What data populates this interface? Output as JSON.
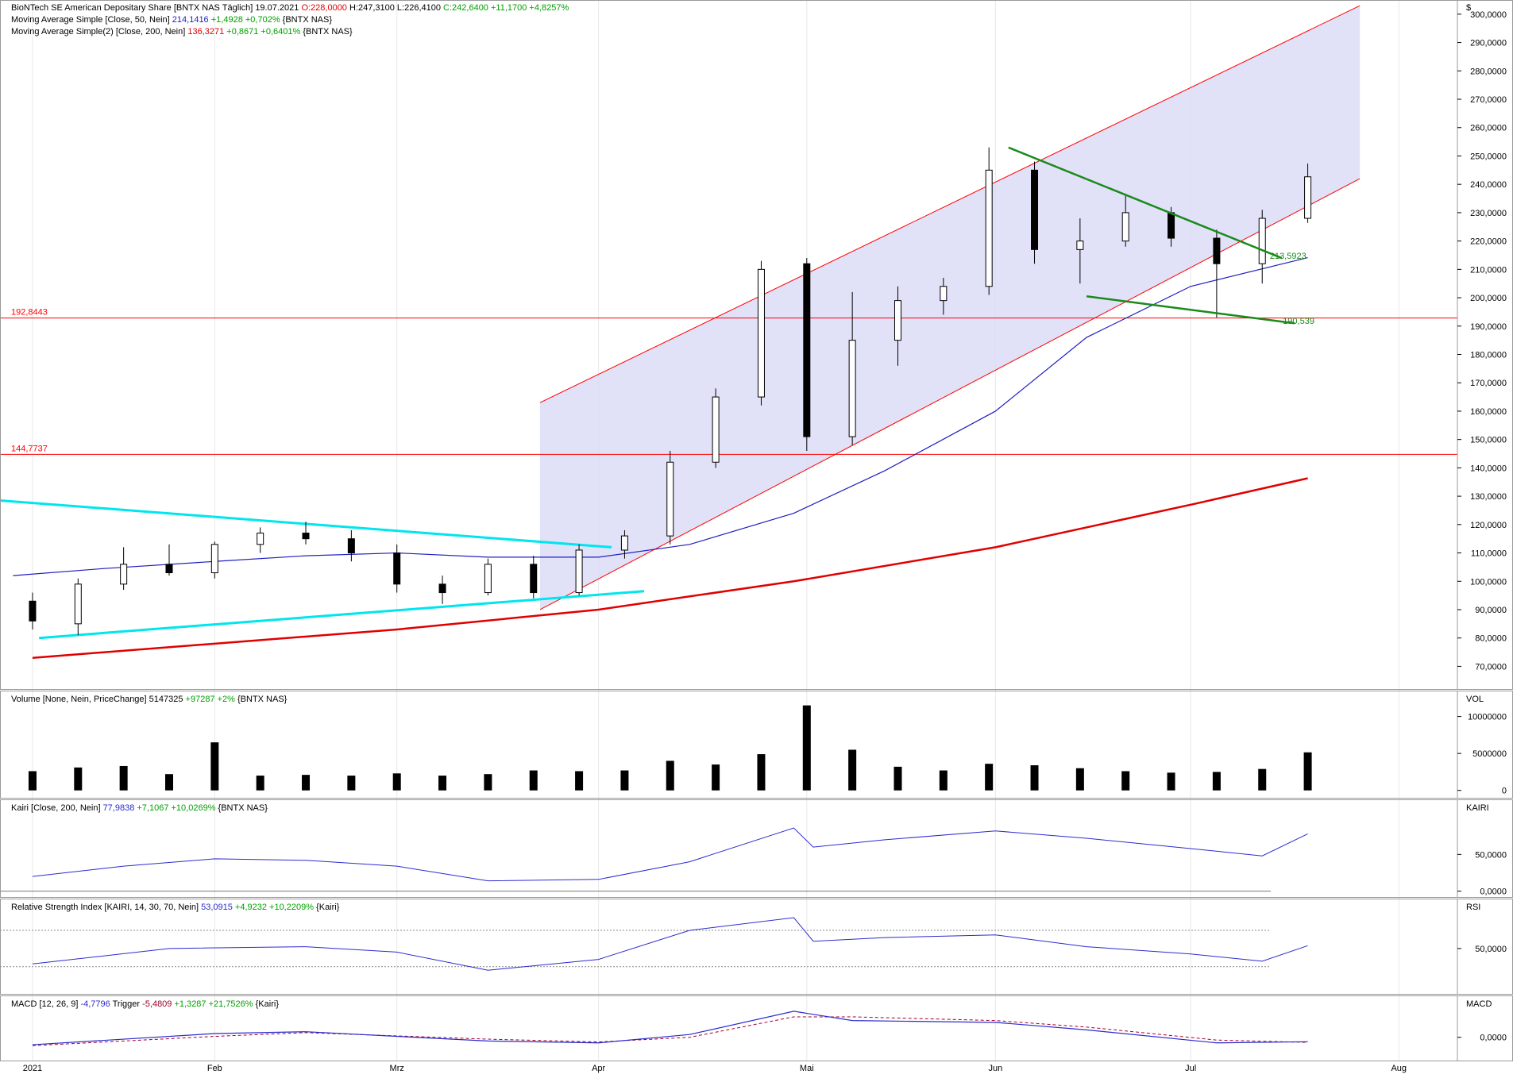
{
  "currency_symbol": "$",
  "colors": {
    "up": "#ffffff",
    "down": "#000000",
    "candle_edge": "#000000",
    "ma50": "#1f1fbf",
    "ma200": "#e00000",
    "channel_fill": "#dcdcf7",
    "channel_line": "#ff0000",
    "hline": "#ff0000",
    "cyan": "#00e5ee",
    "green": "#1a8a1a",
    "volume": "#000000",
    "indicator": "#2b2bd0",
    "macd_trigger": "#a0002a",
    "grid": "#e8e8e8",
    "positive": "#00a000",
    "negative": "#e00000"
  },
  "headers": {
    "price": [
      {
        "parts": [
          {
            "t": "BioNTech SE American Depositary Share [BNTX NAS  Täglich]  19.07.2021 ",
            "c": "#000"
          },
          {
            "t": "O:228,0000",
            "c": "#e00000"
          },
          {
            "t": " H:247,3100 L:226,4100 ",
            "c": "#000"
          },
          {
            "t": "C:242,6400 +11,1700 +4,8257%",
            "c": "#00a000"
          }
        ]
      },
      {
        "parts": [
          {
            "t": "Moving Average Simple [Close, 50, Nein] ",
            "c": "#000"
          },
          {
            "t": "214,1416",
            "c": "#1f1fbf"
          },
          {
            "t": " +1,4928 +0,702%",
            "c": "#00a000"
          },
          {
            "t": " {BNTX NAS}",
            "c": "#000"
          }
        ]
      },
      {
        "parts": [
          {
            "t": "Moving Average Simple(2) [Close, 200, Nein] ",
            "c": "#000"
          },
          {
            "t": "136,3271",
            "c": "#e00000"
          },
          {
            "t": " +0,8671 +0,6401%",
            "c": "#00a000"
          },
          {
            "t": " {BNTX NAS}",
            "c": "#000"
          }
        ]
      }
    ],
    "volume": [
      {
        "t": "Volume [None, Nein, PriceChange] ",
        "c": "#000"
      },
      {
        "t": "5147325",
        "c": "#000"
      },
      {
        "t": " +97287 +2%",
        "c": "#00a000"
      },
      {
        "t": " {BNTX NAS}",
        "c": "#000"
      }
    ],
    "kairi": [
      {
        "t": "Kairi [Close, 200, Nein] ",
        "c": "#000"
      },
      {
        "t": "77,9838",
        "c": "#2b2bd0"
      },
      {
        "t": " +7,1067 +10,0269%",
        "c": "#00a000"
      },
      {
        "t": " {BNTX NAS}",
        "c": "#000"
      }
    ],
    "rsi": [
      {
        "t": "Relative Strength Index [KAIRI, 14, 30, 70, Nein] ",
        "c": "#000"
      },
      {
        "t": "53,0915",
        "c": "#2b2bd0"
      },
      {
        "t": " +4,9232 +10,2209%",
        "c": "#00a000"
      },
      {
        "t": " {Kairi}",
        "c": "#000"
      }
    ],
    "macd": [
      {
        "t": "MACD [12, 26, 9] ",
        "c": "#000"
      },
      {
        "t": "-4,7796",
        "c": "#2b2bd0"
      },
      {
        "t": " Trigger ",
        "c": "#000"
      },
      {
        "t": "-5,4809",
        "c": "#a0002a"
      },
      {
        "t": " +1,3287 +21,7526%",
        "c": "#00a000"
      },
      {
        "t": " {Kairi}",
        "c": "#000"
      }
    ]
  },
  "axis_titles": {
    "volume": "VOL",
    "kairi": "KAIRI",
    "rsi": "RSI",
    "macd": "MACD"
  },
  "x_labels": [
    {
      "label": "2021",
      "date": "2021-01-04"
    },
    {
      "label": "Feb",
      "date": "2021-02-01"
    },
    {
      "label": "Mrz",
      "date": "2021-03-01"
    },
    {
      "label": "Apr",
      "date": "2021-04-01"
    },
    {
      "label": "Mai",
      "date": "2021-05-03"
    },
    {
      "label": "Jun",
      "date": "2021-06-01"
    },
    {
      "label": "Jul",
      "date": "2021-07-01"
    },
    {
      "label": "Aug",
      "date": "2021-08-02"
    }
  ],
  "x_range": [
    "2020-12-30",
    "2021-08-11"
  ],
  "price_axis": {
    "range": [
      62000,
      305000
    ],
    "ticks": [
      {
        "v": 70000,
        "label": "70,0000"
      },
      {
        "v": 80000,
        "label": "80,0000"
      },
      {
        "v": 90000,
        "label": "90,0000"
      },
      {
        "v": 100000,
        "label": "100,0000"
      },
      {
        "v": 110000,
        "label": "110,0000"
      },
      {
        "v": 120000,
        "label": "120,0000"
      },
      {
        "v": 130000,
        "label": "130,0000"
      },
      {
        "v": 140000,
        "label": "140,0000"
      },
      {
        "v": 150000,
        "label": "150,0000"
      },
      {
        "v": 160000,
        "label": "160,0000"
      },
      {
        "v": 170000,
        "label": "170,0000"
      },
      {
        "v": 180000,
        "label": "180,0000"
      },
      {
        "v": 190000,
        "label": "190,0000"
      },
      {
        "v": 200000,
        "label": "200,0000"
      },
      {
        "v": 210000,
        "label": "210,0000"
      },
      {
        "v": 220000,
        "label": "220,0000"
      },
      {
        "v": 230000,
        "label": "230,0000"
      },
      {
        "v": 240000,
        "label": "240,0000"
      },
      {
        "v": 250000,
        "label": "250,0000"
      },
      {
        "v": 260000,
        "label": "260,0000"
      },
      {
        "v": 270000,
        "label": "270,0000"
      },
      {
        "v": 280000,
        "label": "280,0000"
      },
      {
        "v": 290000,
        "label": "290,0000"
      },
      {
        "v": 300000,
        "label": "300,0000"
      }
    ]
  },
  "volume_axis": {
    "range": [
      -1000000,
      13500000
    ],
    "ticks": [
      {
        "v": 0,
        "label": "0"
      },
      {
        "v": 5000000,
        "label": "5000000"
      },
      {
        "v": 10000000,
        "label": "10000000"
      }
    ]
  },
  "kairi_axis": {
    "range": [
      -8000,
      125000
    ],
    "ticks": [
      {
        "v": 0,
        "label": "0,0000"
      },
      {
        "v": 50000,
        "label": "50,0000"
      }
    ]
  },
  "rsi_axis": {
    "range": [
      0,
      105000
    ],
    "ticks": [
      {
        "v": 50000,
        "label": "50,0000"
      }
    ],
    "levels": [
      30000,
      70000
    ]
  },
  "macd_axis": {
    "range": [
      -25000,
      45000
    ],
    "ticks": [
      {
        "v": 0,
        "label": "0,0000"
      }
    ]
  },
  "chart_data": {
    "type": "candlestick",
    "title": "BioNTech SE American Depositary Share [BNTX NAS  Täglich]",
    "candles": [
      {
        "d": "2021-01-04",
        "o": 93000,
        "h": 96000,
        "l": 83000,
        "c": 86000
      },
      {
        "d": "2021-01-11",
        "o": 85000,
        "h": 101000,
        "l": 81000,
        "c": 99000
      },
      {
        "d": "2021-01-18",
        "o": 99000,
        "h": 112000,
        "l": 97000,
        "c": 106000
      },
      {
        "d": "2021-01-25",
        "o": 106000,
        "h": 113000,
        "l": 102000,
        "c": 103000
      },
      {
        "d": "2021-02-01",
        "o": 103000,
        "h": 114000,
        "l": 101000,
        "c": 113000
      },
      {
        "d": "2021-02-08",
        "o": 113000,
        "h": 119000,
        "l": 110000,
        "c": 117000
      },
      {
        "d": "2021-02-15",
        "o": 117000,
        "h": 121000,
        "l": 113000,
        "c": 115000
      },
      {
        "d": "2021-02-22",
        "o": 115000,
        "h": 118000,
        "l": 107000,
        "c": 110000
      },
      {
        "d": "2021-03-01",
        "o": 110000,
        "h": 113000,
        "l": 96000,
        "c": 99000
      },
      {
        "d": "2021-03-08",
        "o": 99000,
        "h": 102000,
        "l": 92000,
        "c": 96000
      },
      {
        "d": "2021-03-15",
        "o": 96000,
        "h": 108000,
        "l": 95000,
        "c": 106000
      },
      {
        "d": "2021-03-22",
        "o": 106000,
        "h": 109000,
        "l": 94000,
        "c": 96000
      },
      {
        "d": "2021-03-29",
        "o": 96000,
        "h": 113000,
        "l": 95000,
        "c": 111000
      },
      {
        "d": "2021-04-05",
        "o": 111000,
        "h": 118000,
        "l": 108000,
        "c": 116000
      },
      {
        "d": "2021-04-12",
        "o": 116000,
        "h": 146000,
        "l": 113000,
        "c": 142000
      },
      {
        "d": "2021-04-19",
        "o": 142000,
        "h": 168000,
        "l": 140000,
        "c": 165000
      },
      {
        "d": "2021-04-26",
        "o": 165000,
        "h": 213000,
        "l": 162000,
        "c": 210000
      },
      {
        "d": "2021-05-03",
        "o": 212000,
        "h": 214000,
        "l": 146000,
        "c": 151000
      },
      {
        "d": "2021-05-10",
        "o": 151000,
        "h": 202000,
        "l": 148000,
        "c": 185000
      },
      {
        "d": "2021-05-17",
        "o": 185000,
        "h": 204000,
        "l": 176000,
        "c": 199000
      },
      {
        "d": "2021-05-24",
        "o": 199000,
        "h": 207000,
        "l": 194000,
        "c": 204000
      },
      {
        "d": "2021-05-31",
        "o": 204000,
        "h": 253000,
        "l": 201000,
        "c": 245000
      },
      {
        "d": "2021-06-07",
        "o": 245000,
        "h": 248000,
        "l": 212000,
        "c": 217000
      },
      {
        "d": "2021-06-14",
        "o": 217000,
        "h": 228000,
        "l": 205000,
        "c": 220000
      },
      {
        "d": "2021-06-21",
        "o": 220000,
        "h": 236000,
        "l": 218000,
        "c": 230000
      },
      {
        "d": "2021-06-28",
        "o": 230000,
        "h": 232000,
        "l": 218000,
        "c": 221000
      },
      {
        "d": "2021-07-05",
        "o": 221000,
        "h": 224000,
        "l": 193000,
        "c": 212000
      },
      {
        "d": "2021-07-12",
        "o": 212000,
        "h": 231000,
        "l": 205000,
        "c": 228000
      },
      {
        "d": "2021-07-19",
        "o": 228000,
        "h": 247310,
        "l": 226410,
        "c": 242640
      }
    ],
    "ma50": [
      {
        "d": "2021-01-01",
        "v": 102000
      },
      {
        "d": "2021-01-15",
        "v": 104500
      },
      {
        "d": "2021-02-01",
        "v": 107000
      },
      {
        "d": "2021-02-15",
        "v": 109000
      },
      {
        "d": "2021-03-01",
        "v": 110000
      },
      {
        "d": "2021-03-15",
        "v": 108500
      },
      {
        "d": "2021-04-01",
        "v": 108500
      },
      {
        "d": "2021-04-15",
        "v": 113000
      },
      {
        "d": "2021-05-01",
        "v": 124000
      },
      {
        "d": "2021-05-15",
        "v": 139000
      },
      {
        "d": "2021-06-01",
        "v": 160000
      },
      {
        "d": "2021-06-15",
        "v": 186000
      },
      {
        "d": "2021-07-01",
        "v": 204000
      },
      {
        "d": "2021-07-19",
        "v": 214141
      }
    ],
    "ma200": [
      {
        "d": "2021-01-04",
        "v": 73000
      },
      {
        "d": "2021-02-01",
        "v": 78000
      },
      {
        "d": "2021-03-01",
        "v": 83000
      },
      {
        "d": "2021-04-01",
        "v": 90000
      },
      {
        "d": "2021-05-01",
        "v": 100000
      },
      {
        "d": "2021-06-01",
        "v": 112000
      },
      {
        "d": "2021-07-01",
        "v": 127000
      },
      {
        "d": "2021-07-19",
        "v": 136327
      }
    ],
    "channel": {
      "upper": [
        {
          "d": "2021-03-23",
          "v": 163000
        },
        {
          "d": "2021-07-27",
          "v": 303000
        }
      ],
      "lower": [
        {
          "d": "2021-03-23",
          "v": 90000
        },
        {
          "d": "2021-07-27",
          "v": 242000
        }
      ]
    },
    "hlines": [
      {
        "v": 192844,
        "label": "192,8443"
      },
      {
        "v": 144774,
        "label": "144,7737"
      }
    ],
    "cyan_lines": [
      [
        {
          "d": "2020-12-30",
          "v": 128500
        },
        {
          "d": "2021-04-03",
          "v": 112000
        }
      ],
      [
        {
          "d": "2021-01-05",
          "v": 80000
        },
        {
          "d": "2021-04-08",
          "v": 96500
        }
      ]
    ],
    "green_lines": [
      {
        "points": [
          {
            "d": "2021-06-03",
            "v": 253000
          },
          {
            "d": "2021-07-15",
            "v": 214000
          }
        ],
        "label": "213,5923"
      },
      {
        "points": [
          {
            "d": "2021-06-15",
            "v": 200500
          },
          {
            "d": "2021-07-17",
            "v": 191000
          }
        ],
        "label": "190,539"
      }
    ],
    "volume": [
      {
        "d": "2021-01-04",
        "v": 2600000
      },
      {
        "d": "2021-01-11",
        "v": 3100000
      },
      {
        "d": "2021-01-18",
        "v": 3300000
      },
      {
        "d": "2021-01-25",
        "v": 2200000
      },
      {
        "d": "2021-02-01",
        "v": 6500000
      },
      {
        "d": "2021-02-08",
        "v": 2000000
      },
      {
        "d": "2021-02-15",
        "v": 2100000
      },
      {
        "d": "2021-02-22",
        "v": 2000000
      },
      {
        "d": "2021-03-01",
        "v": 2300000
      },
      {
        "d": "2021-03-08",
        "v": 2000000
      },
      {
        "d": "2021-03-15",
        "v": 2200000
      },
      {
        "d": "2021-03-22",
        "v": 2700000
      },
      {
        "d": "2021-03-29",
        "v": 2600000
      },
      {
        "d": "2021-04-05",
        "v": 2700000
      },
      {
        "d": "2021-04-12",
        "v": 4000000
      },
      {
        "d": "2021-04-19",
        "v": 3500000
      },
      {
        "d": "2021-04-26",
        "v": 4900000
      },
      {
        "d": "2021-05-03",
        "v": 11500000
      },
      {
        "d": "2021-05-10",
        "v": 5500000
      },
      {
        "d": "2021-05-17",
        "v": 3200000
      },
      {
        "d": "2021-05-24",
        "v": 2700000
      },
      {
        "d": "2021-05-31",
        "v": 3600000
      },
      {
        "d": "2021-06-07",
        "v": 3400000
      },
      {
        "d": "2021-06-14",
        "v": 3000000
      },
      {
        "d": "2021-06-21",
        "v": 2600000
      },
      {
        "d": "2021-06-28",
        "v": 2400000
      },
      {
        "d": "2021-07-05",
        "v": 2500000
      },
      {
        "d": "2021-07-12",
        "v": 2900000
      },
      {
        "d": "2021-07-19",
        "v": 5147325
      }
    ],
    "kairi": [
      {
        "d": "2021-01-04",
        "v": 20000
      },
      {
        "d": "2021-01-18",
        "v": 34000
      },
      {
        "d": "2021-02-01",
        "v": 44000
      },
      {
        "d": "2021-02-15",
        "v": 42000
      },
      {
        "d": "2021-03-01",
        "v": 34000
      },
      {
        "d": "2021-03-15",
        "v": 14000
      },
      {
        "d": "2021-04-01",
        "v": 16000
      },
      {
        "d": "2021-04-15",
        "v": 40000
      },
      {
        "d": "2021-05-01",
        "v": 86000
      },
      {
        "d": "2021-05-04",
        "v": 60000
      },
      {
        "d": "2021-05-15",
        "v": 70000
      },
      {
        "d": "2021-06-01",
        "v": 82000
      },
      {
        "d": "2021-06-15",
        "v": 72000
      },
      {
        "d": "2021-07-01",
        "v": 58000
      },
      {
        "d": "2021-07-12",
        "v": 48000
      },
      {
        "d": "2021-07-19",
        "v": 77984
      }
    ],
    "rsi": [
      {
        "d": "2021-01-04",
        "v": 33000
      },
      {
        "d": "2021-01-25",
        "v": 50000
      },
      {
        "d": "2021-02-15",
        "v": 52000
      },
      {
        "d": "2021-03-01",
        "v": 46000
      },
      {
        "d": "2021-03-15",
        "v": 26000
      },
      {
        "d": "2021-04-01",
        "v": 38000
      },
      {
        "d": "2021-04-15",
        "v": 70000
      },
      {
        "d": "2021-05-01",
        "v": 84000
      },
      {
        "d": "2021-05-04",
        "v": 58000
      },
      {
        "d": "2021-05-15",
        "v": 62000
      },
      {
        "d": "2021-06-01",
        "v": 65000
      },
      {
        "d": "2021-06-15",
        "v": 52000
      },
      {
        "d": "2021-07-01",
        "v": 44000
      },
      {
        "d": "2021-07-12",
        "v": 36000
      },
      {
        "d": "2021-07-19",
        "v": 53092
      }
    ],
    "macd": [
      {
        "d": "2021-01-04",
        "v": -8000
      },
      {
        "d": "2021-02-01",
        "v": 4000
      },
      {
        "d": "2021-02-15",
        "v": 6000
      },
      {
        "d": "2021-03-15",
        "v": -4000
      },
      {
        "d": "2021-04-01",
        "v": -6000
      },
      {
        "d": "2021-04-15",
        "v": 3000
      },
      {
        "d": "2021-05-01",
        "v": 28000
      },
      {
        "d": "2021-05-10",
        "v": 18000
      },
      {
        "d": "2021-06-01",
        "v": 16000
      },
      {
        "d": "2021-06-15",
        "v": 8000
      },
      {
        "d": "2021-07-05",
        "v": -6000
      },
      {
        "d": "2021-07-19",
        "v": -4780
      }
    ],
    "macd_trigger": [
      {
        "d": "2021-01-04",
        "v": -9000
      },
      {
        "d": "2021-02-01",
        "v": 1000
      },
      {
        "d": "2021-02-15",
        "v": 5000
      },
      {
        "d": "2021-03-15",
        "v": -2000
      },
      {
        "d": "2021-04-01",
        "v": -5000
      },
      {
        "d": "2021-04-15",
        "v": 0
      },
      {
        "d": "2021-05-01",
        "v": 22000
      },
      {
        "d": "2021-05-10",
        "v": 22000
      },
      {
        "d": "2021-06-01",
        "v": 18000
      },
      {
        "d": "2021-06-15",
        "v": 11000
      },
      {
        "d": "2021-07-05",
        "v": -3000
      },
      {
        "d": "2021-07-19",
        "v": -5481
      }
    ]
  }
}
